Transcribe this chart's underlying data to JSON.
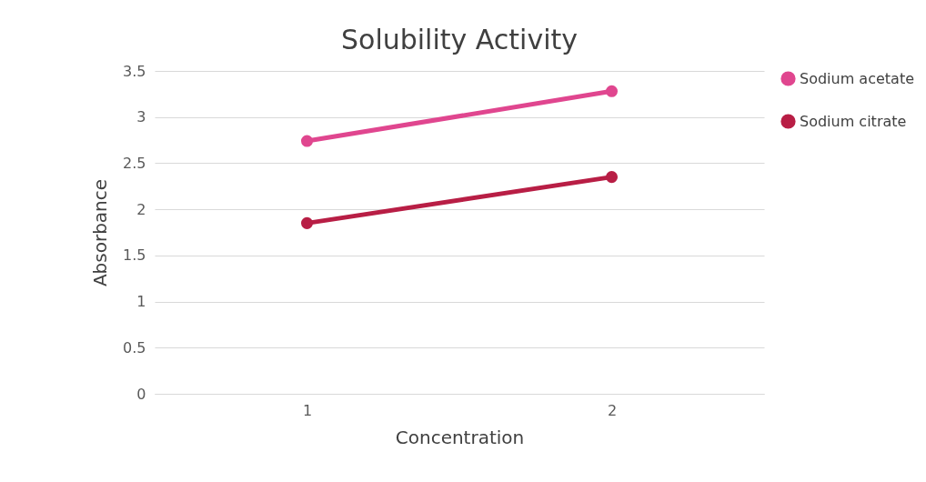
{
  "chart_data": {
    "type": "line",
    "title": "Solubility Activity",
    "xlabel": "Concentration",
    "ylabel": "Absorbance",
    "categories": [
      "1",
      "2"
    ],
    "series": [
      {
        "name": "Sodium acetate",
        "color": "#e0468f",
        "values": [
          2.74,
          3.28
        ]
      },
      {
        "name": "Sodium citrate",
        "color": "#b81e45",
        "values": [
          1.85,
          2.35
        ]
      }
    ],
    "ylim": [
      0,
      3.5
    ],
    "yticks": [
      0,
      0.5,
      1,
      1.5,
      2,
      2.5,
      3,
      3.5
    ],
    "grid": "y",
    "legend": "right",
    "marker": "circle",
    "line_style": "solid"
  }
}
